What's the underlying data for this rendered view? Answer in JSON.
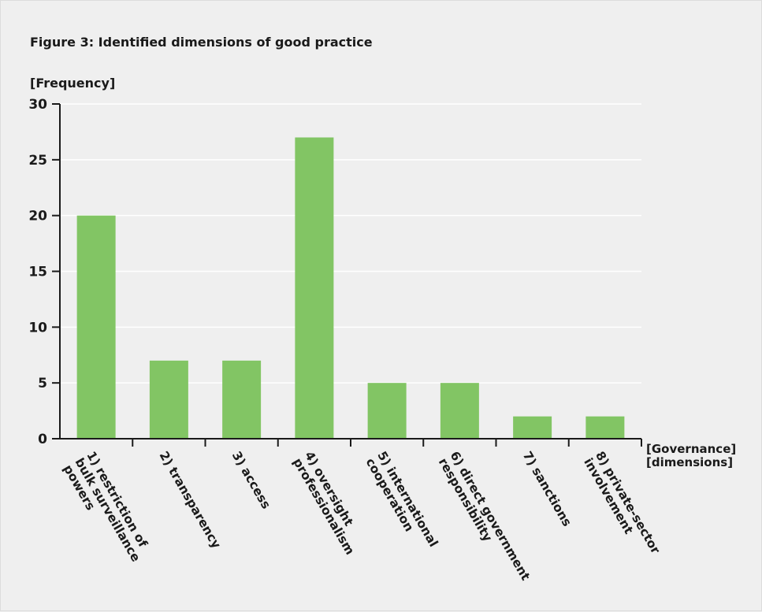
{
  "chart_data": {
    "type": "bar",
    "title": "Figure 3: Identified dimensions of good practice",
    "ylabel": "[Frequency]",
    "xlabel": [
      "[Governance]",
      "[dimensions]"
    ],
    "ylim": [
      0,
      30
    ],
    "yticks": [
      0,
      5,
      10,
      15,
      20,
      25,
      30
    ],
    "grid": true,
    "bar_color": "#82c564",
    "categories": [
      [
        "1) restriction of",
        "bulk surveillance",
        "powers"
      ],
      [
        "2) transparency"
      ],
      [
        "3) access"
      ],
      [
        "4) oversight",
        "professionalism"
      ],
      [
        "5) international",
        "cooperation"
      ],
      [
        "6) direct government",
        "responsibility"
      ],
      [
        "7) sanctions"
      ],
      [
        "8) private-sector",
        "involvement"
      ]
    ],
    "values": [
      20,
      7,
      7,
      27,
      5,
      5,
      2,
      2
    ]
  }
}
